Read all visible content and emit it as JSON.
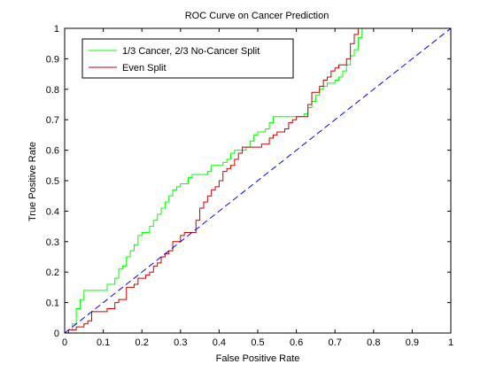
{
  "chart_data": {
    "type": "line",
    "title": "ROC Curve on Cancer Prediction",
    "xlabel": "False Positive Rate",
    "ylabel": "True Positive Rate",
    "xlim": [
      0,
      1
    ],
    "ylim": [
      0,
      1
    ],
    "xticks": [
      "0",
      "0.1",
      "0.2",
      "0.3",
      "0.4",
      "0.5",
      "0.6",
      "0.7",
      "0.8",
      "0.9",
      "1"
    ],
    "yticks": [
      "0",
      "0.1",
      "0.2",
      "0.3",
      "0.4",
      "0.5",
      "0.6",
      "0.7",
      "0.8",
      "0.9",
      "1"
    ],
    "grid": false,
    "legend_position": "top-left",
    "series": [
      {
        "name": "1/3 Cancer, 2/3 No-Cancer Split",
        "color": "#00ff00",
        "style": "solid",
        "x": [
          0,
          0.01,
          0.02,
          0.03,
          0.04,
          0.05,
          0.07,
          0.09,
          0.11,
          0.13,
          0.14,
          0.15,
          0.16,
          0.17,
          0.18,
          0.19,
          0.2,
          0.21,
          0.22,
          0.23,
          0.24,
          0.25,
          0.26,
          0.27,
          0.28,
          0.29,
          0.3,
          0.31,
          0.32,
          0.33,
          0.35,
          0.37,
          0.38,
          0.4,
          0.41,
          0.42,
          0.43,
          0.44,
          0.46,
          0.47,
          0.48,
          0.49,
          0.5,
          0.51,
          0.52,
          0.53,
          0.54,
          0.55,
          0.57,
          0.58,
          0.59,
          0.6,
          0.61,
          0.62,
          0.63,
          0.64,
          0.65,
          0.66,
          0.67,
          0.68,
          0.69,
          0.7,
          0.71,
          0.72,
          0.73,
          0.74,
          0.75,
          0.76,
          0.77
        ],
        "y": [
          0,
          0.01,
          0.03,
          0.08,
          0.11,
          0.14,
          0.14,
          0.14,
          0.16,
          0.18,
          0.21,
          0.22,
          0.25,
          0.27,
          0.29,
          0.32,
          0.33,
          0.33,
          0.35,
          0.37,
          0.39,
          0.41,
          0.43,
          0.45,
          0.47,
          0.48,
          0.49,
          0.49,
          0.51,
          0.52,
          0.52,
          0.53,
          0.55,
          0.55,
          0.56,
          0.57,
          0.59,
          0.6,
          0.6,
          0.61,
          0.63,
          0.65,
          0.66,
          0.66,
          0.67,
          0.69,
          0.71,
          0.71,
          0.71,
          0.71,
          0.71,
          0.71,
          0.71,
          0.72,
          0.74,
          0.76,
          0.78,
          0.8,
          0.81,
          0.82,
          0.82,
          0.83,
          0.84,
          0.86,
          0.88,
          0.91,
          0.93,
          0.97,
          1.0
        ]
      },
      {
        "name": "Even Split",
        "color": "#cc0000",
        "style": "solid",
        "x": [
          0,
          0.01,
          0.03,
          0.05,
          0.06,
          0.07,
          0.09,
          0.11,
          0.13,
          0.14,
          0.15,
          0.16,
          0.17,
          0.18,
          0.19,
          0.21,
          0.22,
          0.23,
          0.24,
          0.25,
          0.26,
          0.27,
          0.28,
          0.3,
          0.31,
          0.32,
          0.34,
          0.35,
          0.36,
          0.37,
          0.38,
          0.39,
          0.4,
          0.41,
          0.42,
          0.43,
          0.44,
          0.45,
          0.46,
          0.47,
          0.49,
          0.51,
          0.53,
          0.54,
          0.55,
          0.56,
          0.57,
          0.58,
          0.59,
          0.6,
          0.61,
          0.62,
          0.63,
          0.64,
          0.65,
          0.66,
          0.67,
          0.68,
          0.69,
          0.7,
          0.71,
          0.72,
          0.73,
          0.74,
          0.75,
          0.76
        ],
        "y": [
          0,
          0.01,
          0.02,
          0.03,
          0.04,
          0.07,
          0.07,
          0.08,
          0.1,
          0.11,
          0.11,
          0.15,
          0.15,
          0.16,
          0.18,
          0.19,
          0.2,
          0.22,
          0.23,
          0.25,
          0.26,
          0.27,
          0.3,
          0.32,
          0.33,
          0.33,
          0.37,
          0.41,
          0.43,
          0.45,
          0.47,
          0.48,
          0.5,
          0.53,
          0.54,
          0.55,
          0.57,
          0.59,
          0.61,
          0.61,
          0.61,
          0.62,
          0.64,
          0.65,
          0.66,
          0.66,
          0.67,
          0.69,
          0.7,
          0.71,
          0.71,
          0.71,
          0.75,
          0.79,
          0.79,
          0.81,
          0.83,
          0.84,
          0.86,
          0.87,
          0.88,
          0.88,
          0.9,
          0.95,
          0.98,
          1.0
        ]
      },
      {
        "name": "",
        "color": "#0000ff",
        "style": "dashed",
        "x": [
          0,
          1
        ],
        "y": [
          0,
          1
        ]
      }
    ]
  }
}
